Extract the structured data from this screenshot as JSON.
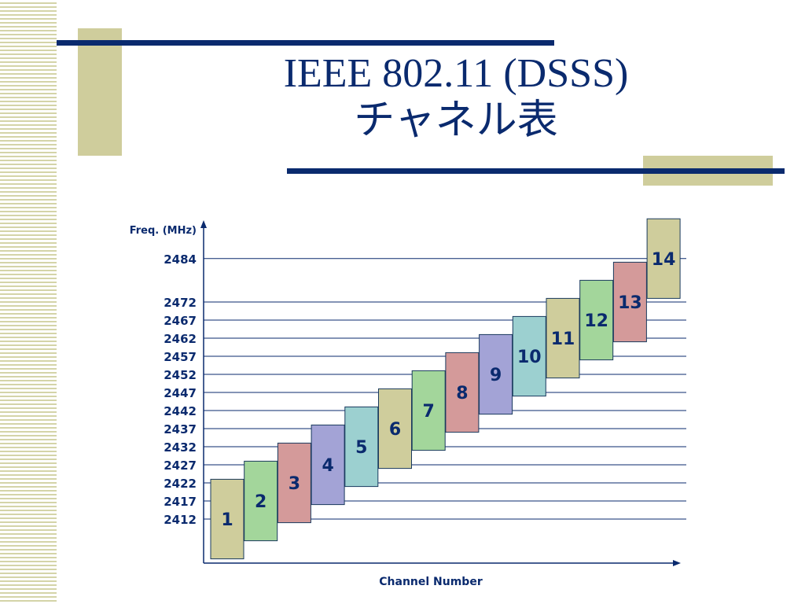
{
  "slide": {
    "title_line1": "IEEE 802.11 (DSSS)",
    "title_line2": "チャネル表"
  },
  "colors": {
    "title": "#0a2a6e",
    "rule": "#0a2a6e",
    "accent_block": "#cfcd9c",
    "stripe": "#d4d4a8"
  },
  "chart_data": {
    "type": "bar",
    "title": "",
    "xlabel": "Channel Number",
    "ylabel": "Freq. (MHz)",
    "y_ticks": [
      2412,
      2417,
      2422,
      2427,
      2432,
      2437,
      2442,
      2447,
      2452,
      2457,
      2462,
      2467,
      2472,
      2484
    ],
    "ylim": [
      2405,
      2494
    ],
    "grid": "horizontal lines at tick frequencies",
    "channels": [
      {
        "label": "1",
        "center": 2412,
        "low": 2401,
        "high": 2423,
        "color": "#cfcd9c"
      },
      {
        "label": "2",
        "center": 2417,
        "low": 2406,
        "high": 2428,
        "color": "#a3d69b"
      },
      {
        "label": "3",
        "center": 2422,
        "low": 2411,
        "high": 2433,
        "color": "#d49a9a"
      },
      {
        "label": "4",
        "center": 2427,
        "low": 2416,
        "high": 2438,
        "color": "#a3a3d6"
      },
      {
        "label": "5",
        "center": 2432,
        "low": 2421,
        "high": 2443,
        "color": "#9cd0d0"
      },
      {
        "label": "6",
        "center": 2437,
        "low": 2426,
        "high": 2448,
        "color": "#cfcd9c"
      },
      {
        "label": "7",
        "center": 2442,
        "low": 2431,
        "high": 2453,
        "color": "#a3d69b"
      },
      {
        "label": "8",
        "center": 2447,
        "low": 2436,
        "high": 2458,
        "color": "#d49a9a"
      },
      {
        "label": "9",
        "center": 2452,
        "low": 2441,
        "high": 2463,
        "color": "#a3a3d6"
      },
      {
        "label": "10",
        "center": 2457,
        "low": 2446,
        "high": 2468,
        "color": "#9cd0d0"
      },
      {
        "label": "11",
        "center": 2462,
        "low": 2451,
        "high": 2473,
        "color": "#cfcd9c"
      },
      {
        "label": "12",
        "center": 2467,
        "low": 2456,
        "high": 2478,
        "color": "#a3d69b"
      },
      {
        "label": "13",
        "center": 2472,
        "low": 2461,
        "high": 2483,
        "color": "#d49a9a"
      },
      {
        "label": "14",
        "center": 2484,
        "low": 2473,
        "high": 2495,
        "color": "#cfcd9c"
      }
    ]
  }
}
